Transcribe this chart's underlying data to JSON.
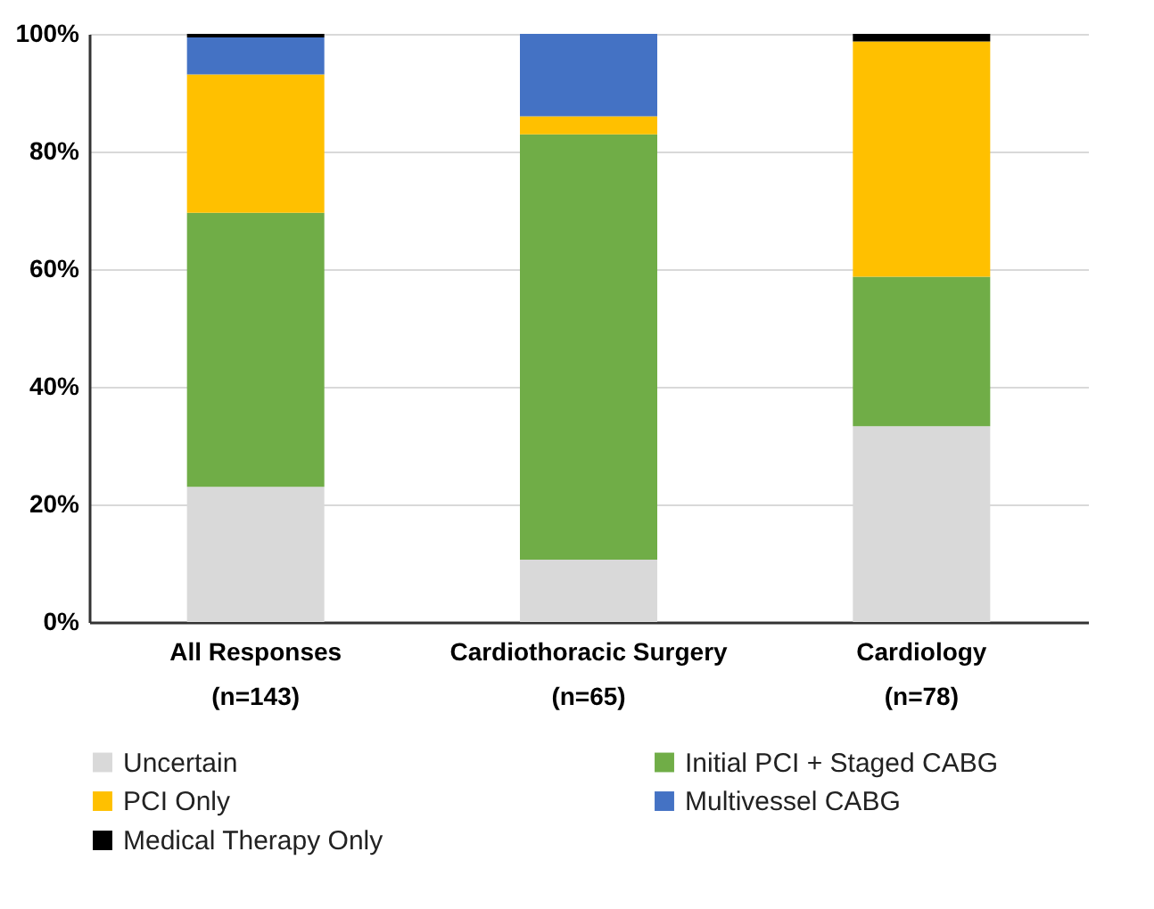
{
  "chart_data": {
    "type": "bar",
    "stacked": true,
    "categories": [
      "All Responses\n(n=143)",
      "Cardiothoracic Surgery\n(n=65)",
      "Cardiology\n(n=78)"
    ],
    "series": [
      {
        "name": "Uncertain",
        "color": "#d9d9d9",
        "values": [
          23,
          10.6,
          33.3
        ]
      },
      {
        "name": "Initial PCI + Staged CABG",
        "color": "#70ad47",
        "values": [
          46.6,
          72.3,
          25.4
        ]
      },
      {
        "name": "PCI Only",
        "color": "#ffc000",
        "values": [
          23.5,
          3.1,
          40
        ]
      },
      {
        "name": "Multivessel CABG",
        "color": "#4472c4",
        "values": [
          6.3,
          14,
          null
        ]
      },
      {
        "name": "Medical Therapy Only",
        "color": "#000000",
        "values": [
          0.6,
          null,
          1.3
        ]
      }
    ],
    "ylim": [
      0,
      100
    ],
    "yticks": [
      {
        "value": 0,
        "label": "0%"
      },
      {
        "value": 20,
        "label": "20%"
      },
      {
        "value": 40,
        "label": "40%"
      },
      {
        "value": 60,
        "label": "60%"
      },
      {
        "value": 80,
        "label": "80%"
      },
      {
        "value": 100,
        "label": "100%"
      }
    ],
    "grid": "y",
    "legend": "bottom"
  }
}
